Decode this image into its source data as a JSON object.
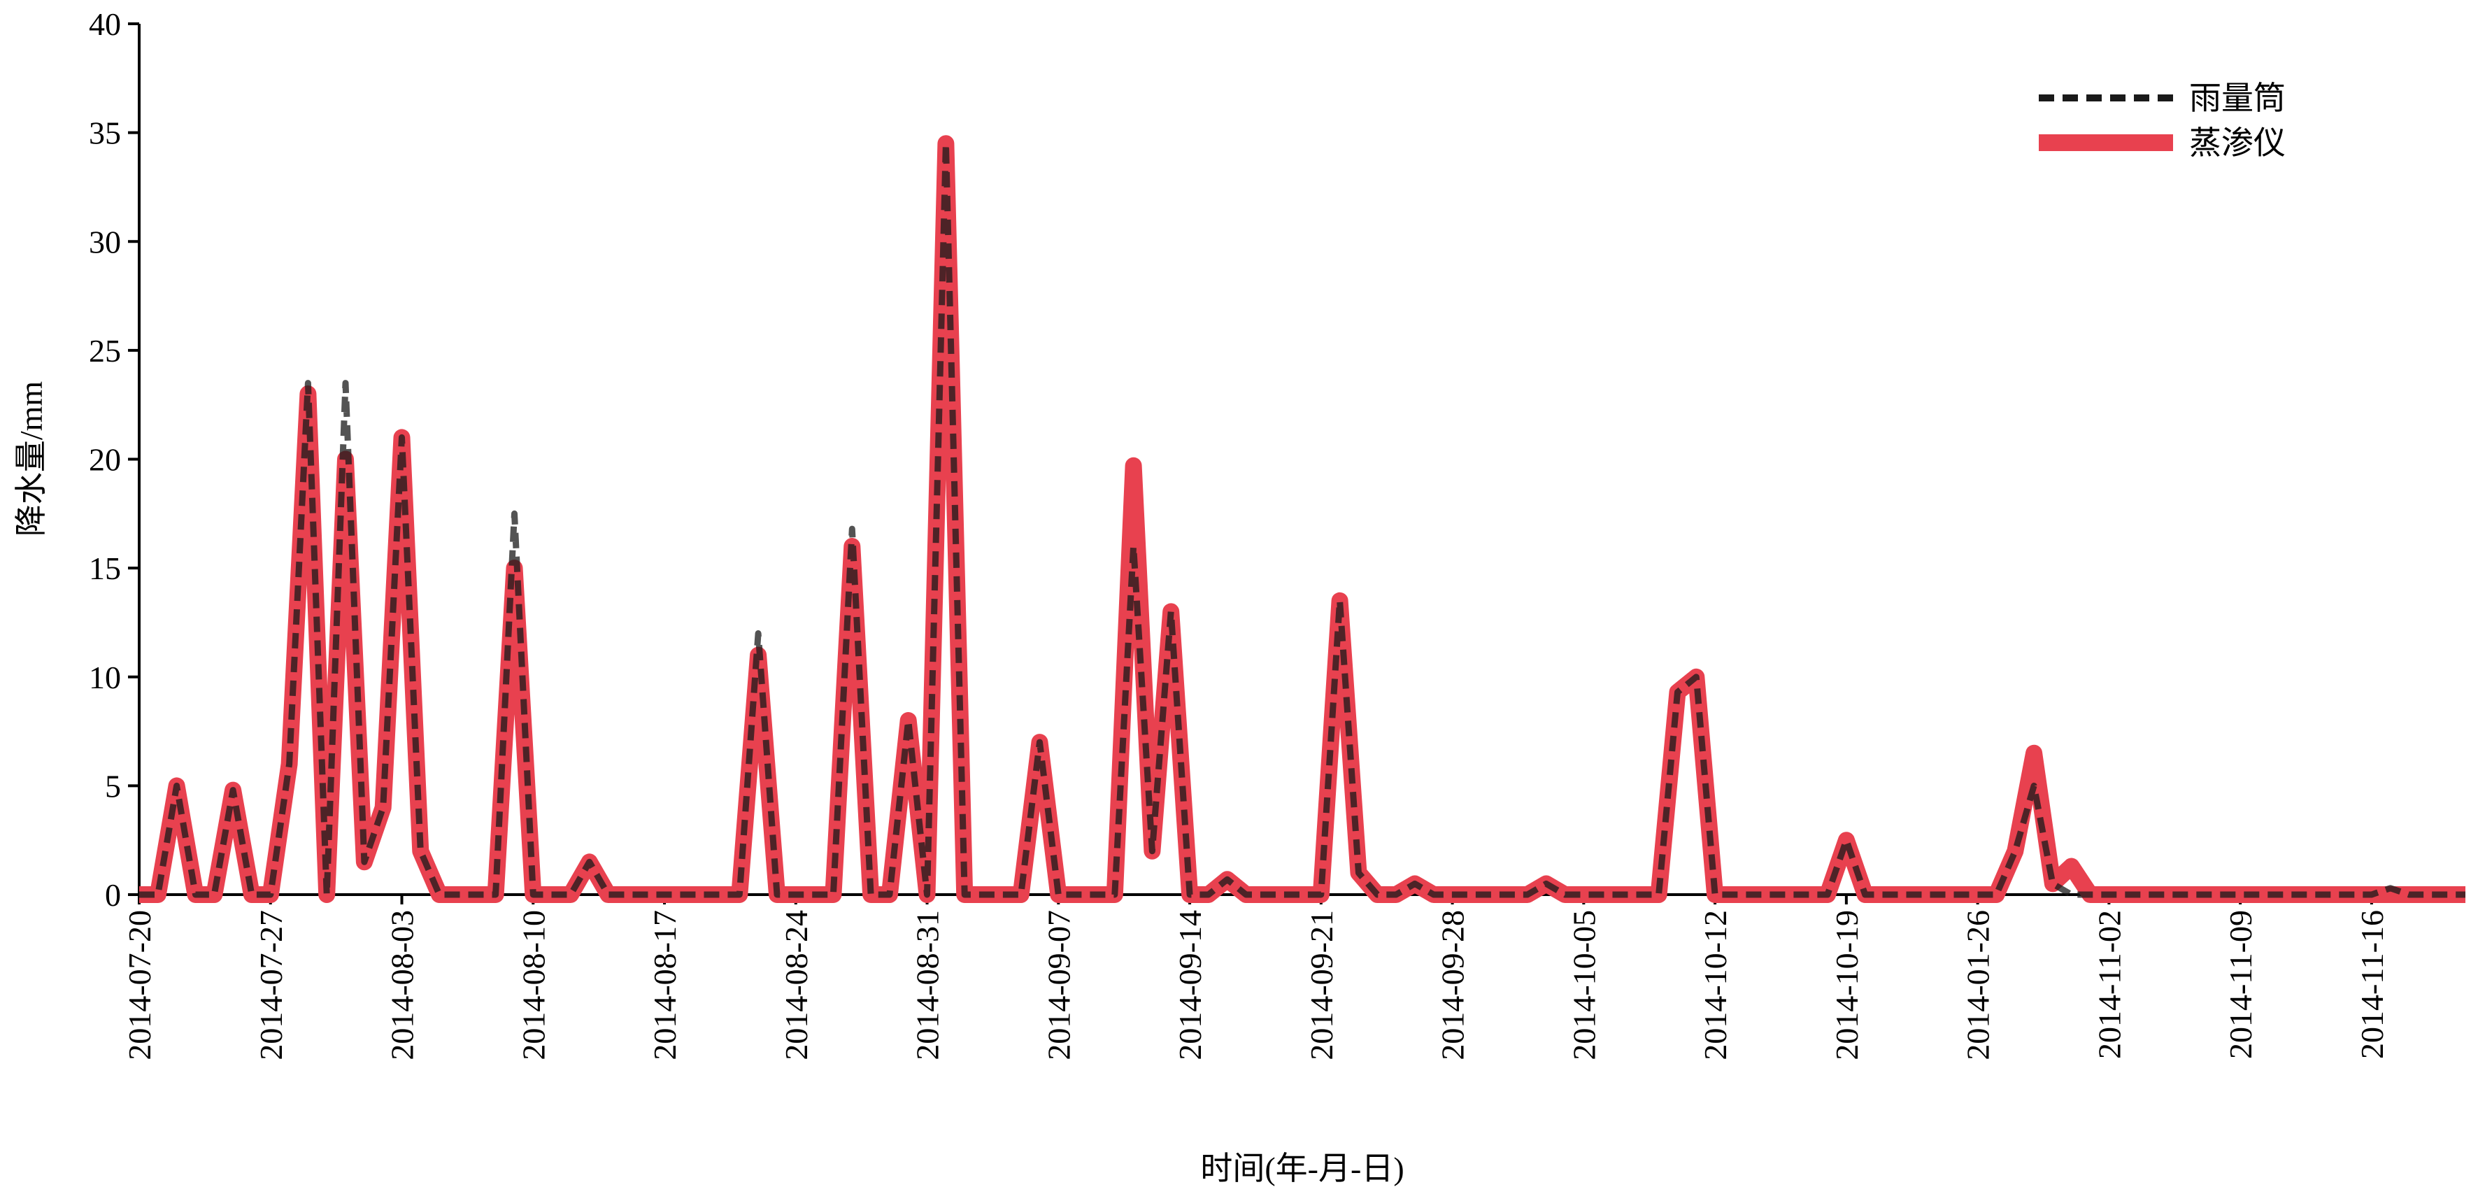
{
  "chart_data": {
    "type": "line",
    "x_label": "时间(年-月-日)",
    "y_label": "降水量/mm",
    "categories": [
      "2014-07-20",
      null,
      null,
      null,
      null,
      null,
      null,
      "2014-07-27",
      null,
      null,
      null,
      null,
      null,
      null,
      "2014-08-03",
      null,
      null,
      null,
      null,
      null,
      null,
      "2014-08-10",
      null,
      null,
      null,
      null,
      null,
      null,
      "2014-08-17",
      null,
      null,
      null,
      null,
      null,
      null,
      "2014-08-24",
      null,
      null,
      null,
      null,
      null,
      null,
      "2014-08-31",
      null,
      null,
      null,
      null,
      null,
      null,
      "2014-09-07",
      null,
      null,
      null,
      null,
      null,
      null,
      "2014-09-14",
      null,
      null,
      null,
      null,
      null,
      null,
      "2014-09-21",
      null,
      null,
      null,
      null,
      null,
      null,
      "2014-09-28",
      null,
      null,
      null,
      null,
      null,
      null,
      "2014-10-05",
      null,
      null,
      null,
      null,
      null,
      null,
      "2014-10-12",
      null,
      null,
      null,
      null,
      null,
      null,
      "2014-10-19",
      null,
      null,
      null,
      null,
      null,
      null,
      "2014-01-26",
      null,
      null,
      null,
      null,
      null,
      null,
      "2014-11-02",
      null,
      null,
      null,
      null,
      null,
      null,
      "2014-11-09",
      null,
      null,
      null,
      null,
      null,
      null,
      "2014-11-16",
      null,
      null,
      null,
      null,
      null
    ],
    "series": [
      {
        "name": "雨量筒",
        "color": "#1a1a1a",
        "dashed": true,
        "values": [
          0,
          0,
          5,
          0,
          0,
          4.8,
          0,
          0,
          6,
          23.5,
          0,
          23.5,
          1.5,
          4,
          21,
          2,
          0,
          0,
          0,
          0,
          17.5,
          0,
          0,
          0,
          1.5,
          0,
          0,
          0,
          0,
          0,
          0,
          0,
          0,
          12,
          0,
          0,
          0,
          0,
          16.8,
          0,
          0,
          8,
          0,
          34.5,
          0,
          0,
          0,
          0,
          7,
          0,
          0,
          0,
          0,
          16,
          2,
          13,
          0,
          0,
          0.7,
          0,
          0,
          0,
          0,
          0,
          13.5,
          1,
          0,
          0,
          0.5,
          0,
          0,
          0,
          0,
          0,
          0,
          0.5,
          0,
          0,
          0,
          0,
          0,
          0,
          9.3,
          10,
          0,
          0,
          0,
          0,
          0,
          0,
          0,
          2.5,
          0,
          0,
          0,
          0,
          0,
          0,
          0,
          0,
          2,
          5,
          0.5,
          0,
          0,
          0,
          0,
          0,
          0,
          0,
          0,
          0,
          0,
          0,
          0,
          0,
          0,
          0,
          0,
          0,
          0.3,
          0,
          0,
          0,
          0
        ]
      },
      {
        "name": "蒸渗仪",
        "color": "#e8414f",
        "dashed": false,
        "values": [
          0,
          0,
          5,
          0,
          0,
          4.8,
          0,
          0,
          6,
          23,
          0,
          20,
          1.5,
          4,
          21,
          2,
          0,
          0,
          0,
          0,
          15,
          0,
          0,
          0,
          1.5,
          0,
          0,
          0,
          0,
          0,
          0,
          0,
          0,
          11,
          0,
          0,
          0,
          0,
          16,
          0,
          0,
          8,
          0,
          34.5,
          0,
          0,
          0,
          0,
          7,
          0,
          0,
          0,
          0,
          19.7,
          2,
          13,
          0,
          0,
          0.7,
          0,
          0,
          0,
          0,
          0,
          13.5,
          1,
          0,
          0,
          0.5,
          0,
          0,
          0,
          0,
          0,
          0,
          0.5,
          0,
          0,
          0,
          0,
          0,
          0,
          9.3,
          10,
          0,
          0,
          0,
          0,
          0,
          0,
          0,
          2.5,
          0,
          0,
          0,
          0,
          0,
          0,
          0,
          0,
          2,
          6.5,
          0.5,
          1.3,
          0,
          0,
          0,
          0,
          0,
          0,
          0,
          0,
          0,
          0,
          0,
          0,
          0,
          0,
          0,
          0,
          0,
          0,
          0,
          0,
          0
        ]
      }
    ],
    "ylim": [
      0,
      40
    ],
    "yticks": [
      0,
      5,
      10,
      15,
      20,
      25,
      30,
      35,
      40
    ],
    "grid": false,
    "legend": "upper right"
  }
}
